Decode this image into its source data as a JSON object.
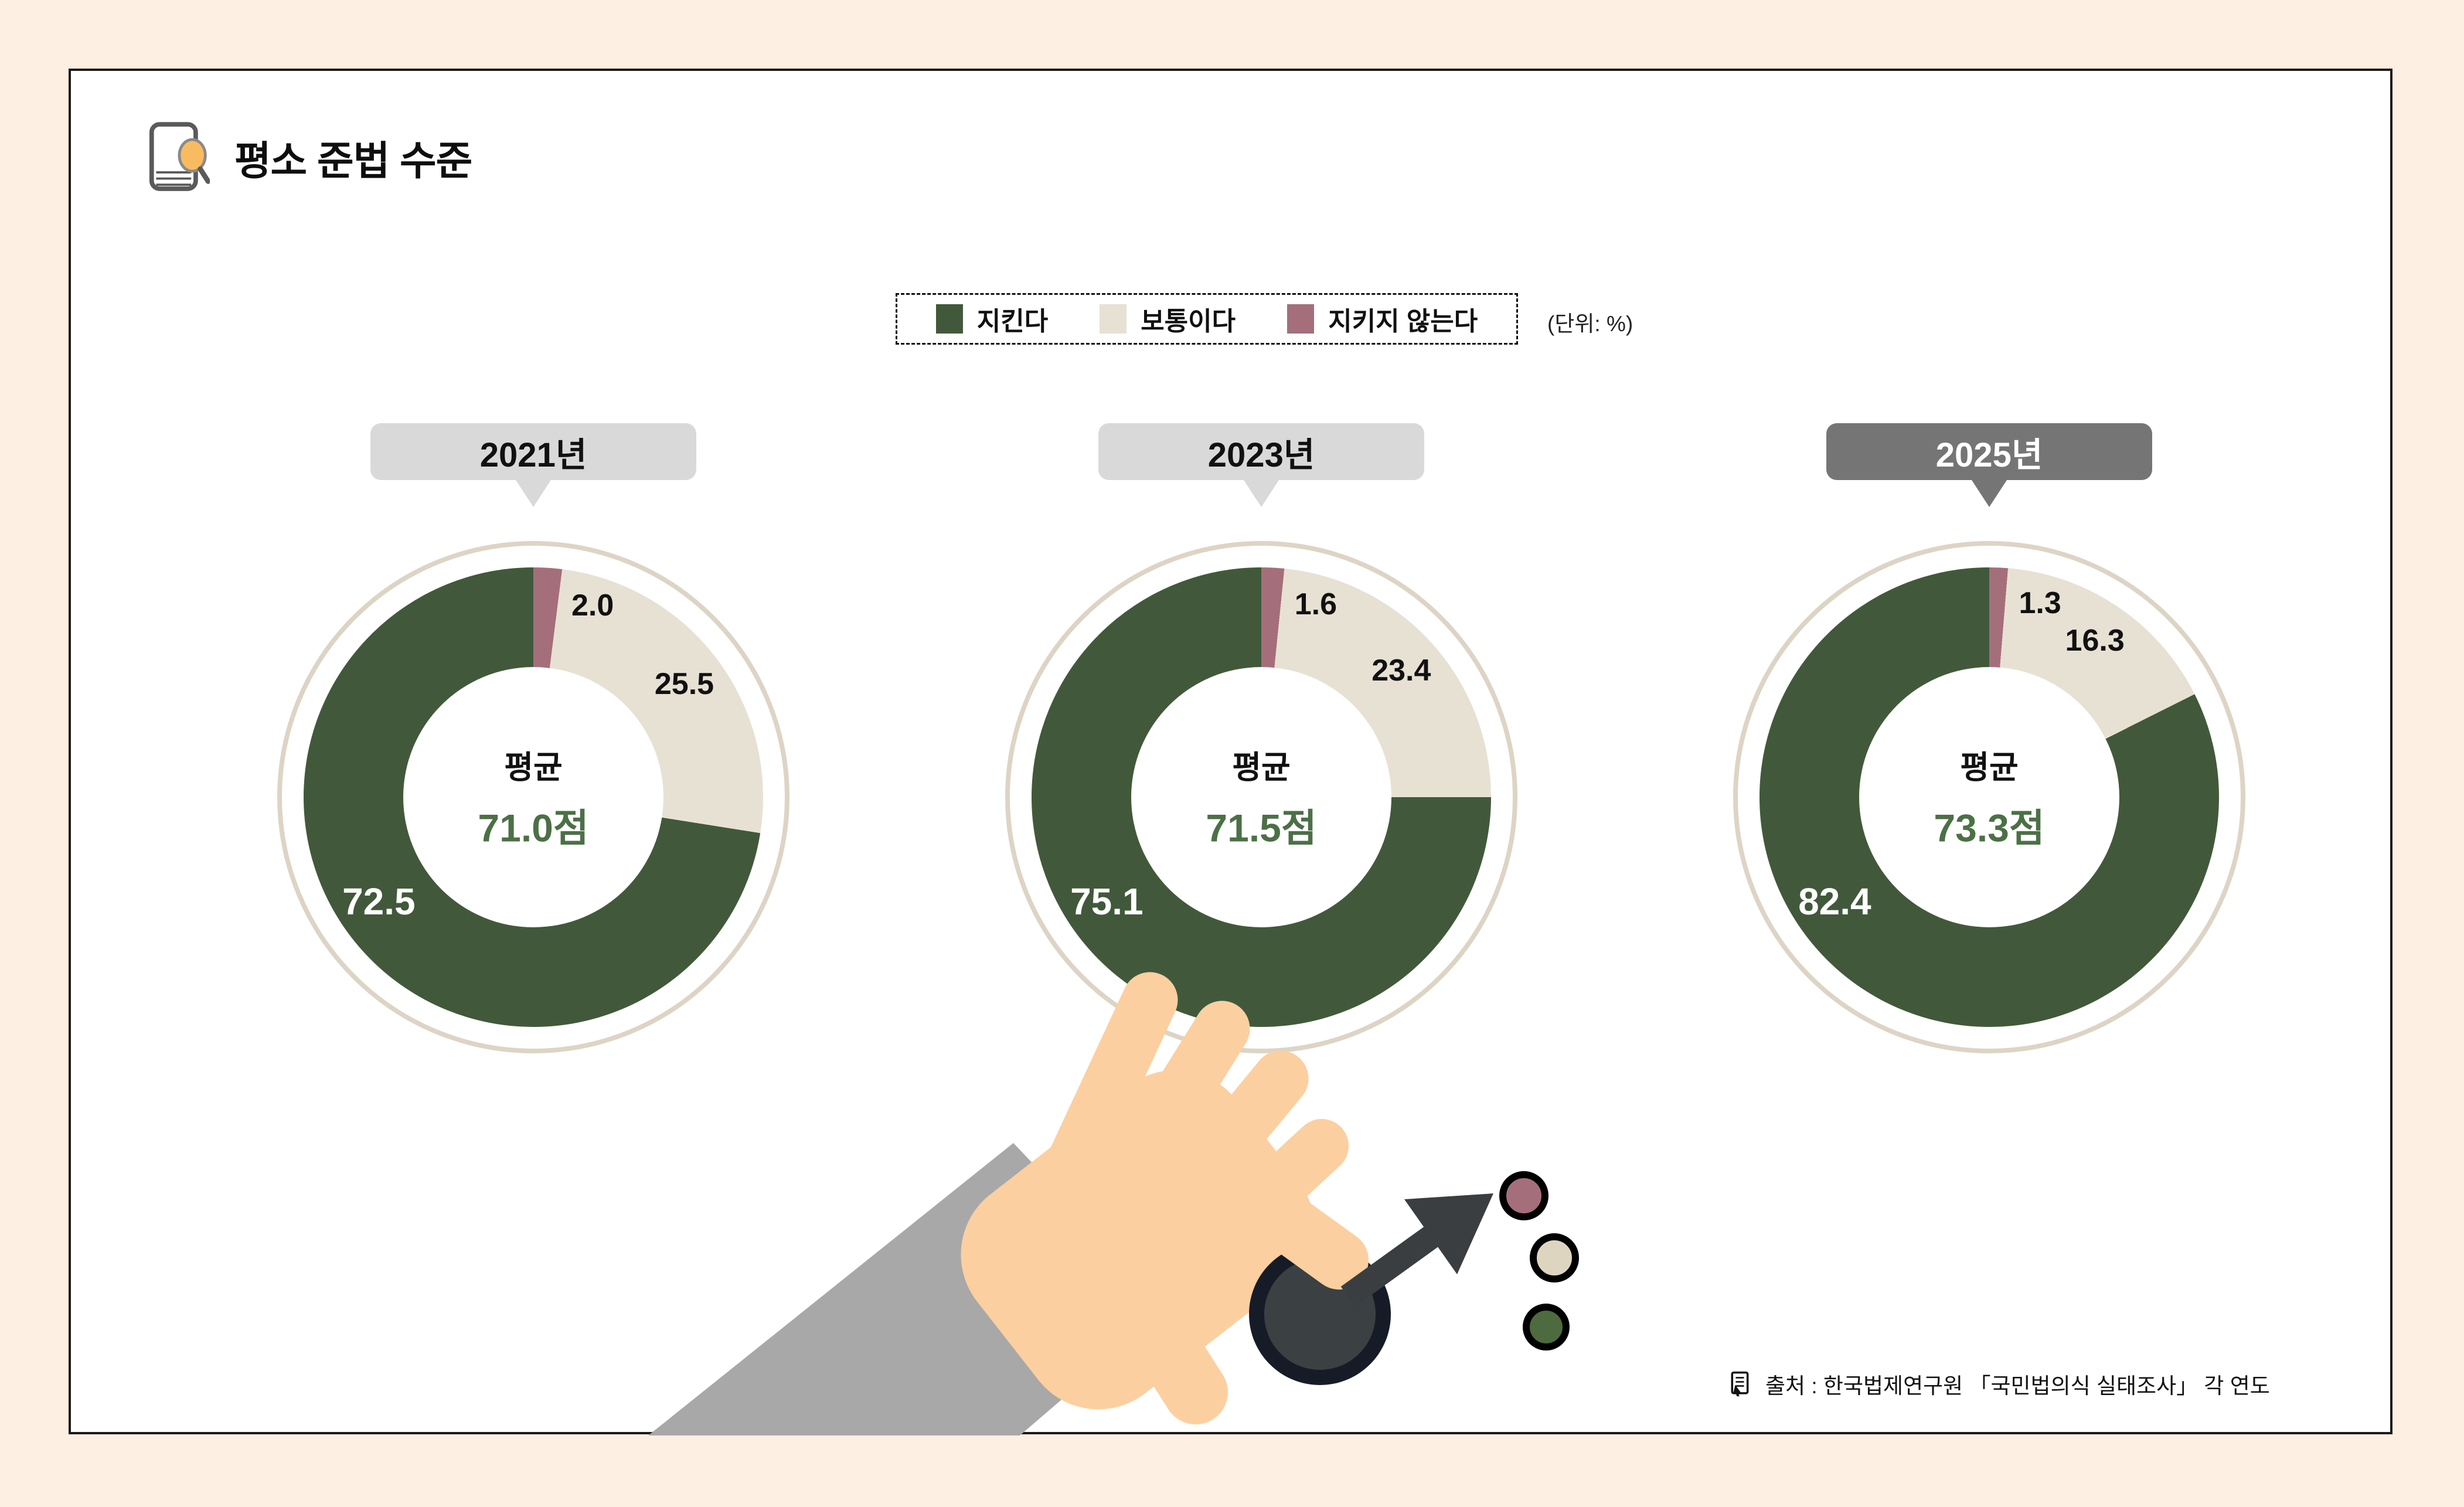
{
  "title": {
    "text": "평소 준법 수준"
  },
  "legend": {
    "unit_note": "(단위: %)"
  },
  "source": {
    "icon": "document-cursor-icon",
    "text": "출처 : 한국법제연구원 「국민법의식 실태조사」 각 연도"
  },
  "colors": {
    "background": "#fdf0e2",
    "panel_border": "#1b1b1b",
    "keep_green": "#41593a",
    "average_beige": "#e7e1d4",
    "notkeep_maroon": "#a56e7b",
    "avg_text_green": "#4c7046",
    "badge_light": "#d9d9d9",
    "badge_dark": "#757575",
    "outer_ring": "#ddd4c5",
    "hand_skin": "#fccfa0",
    "sleeve_gray": "#a8a8a8",
    "dark_object": "#161c27",
    "arrow": "#3a3e40"
  },
  "chart_data": {
    "type": "pie",
    "subtype": "donut",
    "unit": "%",
    "title": "평소 준법 수준",
    "legend_position": "top",
    "segment_order_clockwise_from_top": [
      "지키지 않는다",
      "보통이다",
      "지킨다"
    ],
    "categories": [
      "2021년",
      "2023년",
      "2025년"
    ],
    "series": [
      {
        "name": "지킨다",
        "color": "#41593a",
        "values": [
          "72.5",
          "75.1",
          "82.4"
        ]
      },
      {
        "name": "보통이다",
        "color": "#e7e1d4",
        "values": [
          "25.5",
          "23.4",
          "16.3"
        ]
      },
      {
        "name": "지키지 않는다",
        "color": "#a56e7b",
        "values": [
          "2.0",
          "1.6",
          "1.3"
        ]
      }
    ],
    "averages": {
      "label": "평균",
      "values": [
        "71.0점",
        "71.5점",
        "73.3점"
      ]
    }
  }
}
